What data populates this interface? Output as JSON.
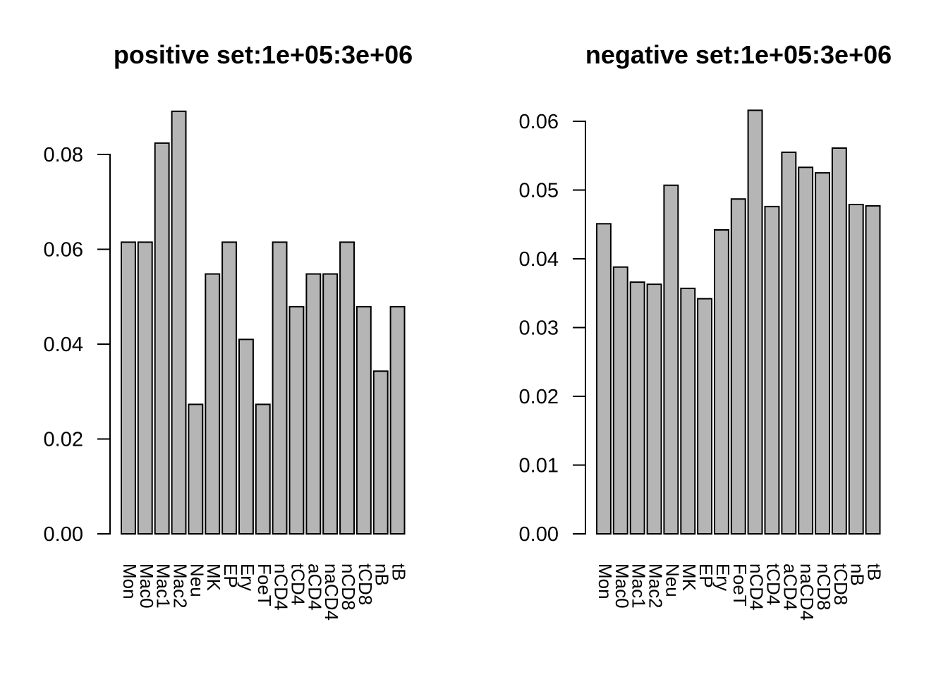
{
  "figure": {
    "background": "#ffffff",
    "text_color": "#000000"
  },
  "chart_data": [
    {
      "type": "bar",
      "title": "positive set:1e+05:3e+06",
      "categories": [
        "Mon",
        "Mac0",
        "Mac1",
        "Mac2",
        "Neu",
        "MK",
        "EP",
        "Ery",
        "FoeT",
        "nCD4",
        "tCD4",
        "aCD4",
        "naCD4",
        "nCD8",
        "tCD8",
        "nB",
        "tB"
      ],
      "values": [
        0.0615,
        0.0615,
        0.0824,
        0.0891,
        0.0273,
        0.0548,
        0.0615,
        0.041,
        0.0273,
        0.0615,
        0.0479,
        0.0548,
        0.0548,
        0.0615,
        0.0479,
        0.0343,
        0.0479
      ],
      "xlabel": "",
      "ylabel": "",
      "ylim": [
        0,
        0.0891
      ],
      "yticks": [
        0,
        0.02,
        0.04,
        0.06,
        0.08
      ],
      "ytick_labels": [
        "0.00",
        "0.02",
        "0.04",
        "0.06",
        "0.08"
      ],
      "grid": false,
      "legend": null,
      "bar_fill": "#b5b5b5",
      "bar_stroke": "#000000",
      "x_labels_rotated": true
    },
    {
      "type": "bar",
      "title": "negative set:1e+05:3e+06",
      "categories": [
        "Mon",
        "Mac0",
        "Mac1",
        "Mac2",
        "Neu",
        "MK",
        "EP",
        "Ery",
        "FoeT",
        "nCD4",
        "tCD4",
        "aCD4",
        "naCD4",
        "nCD8",
        "tCD8",
        "nB",
        "tB"
      ],
      "values": [
        0.0451,
        0.0388,
        0.0366,
        0.0363,
        0.0507,
        0.0357,
        0.0342,
        0.0442,
        0.0487,
        0.0616,
        0.0476,
        0.0555,
        0.0533,
        0.0525,
        0.0561,
        0.0479,
        0.0477
      ],
      "xlabel": "",
      "ylabel": "",
      "ylim": [
        0,
        0.0616
      ],
      "yticks": [
        0,
        0.01,
        0.02,
        0.03,
        0.04,
        0.05,
        0.06
      ],
      "ytick_labels": [
        "0.00",
        "0.01",
        "0.02",
        "0.03",
        "0.04",
        "0.05",
        "0.06"
      ],
      "grid": false,
      "legend": null,
      "bar_fill": "#b5b5b5",
      "bar_stroke": "#000000",
      "x_labels_rotated": true
    }
  ]
}
